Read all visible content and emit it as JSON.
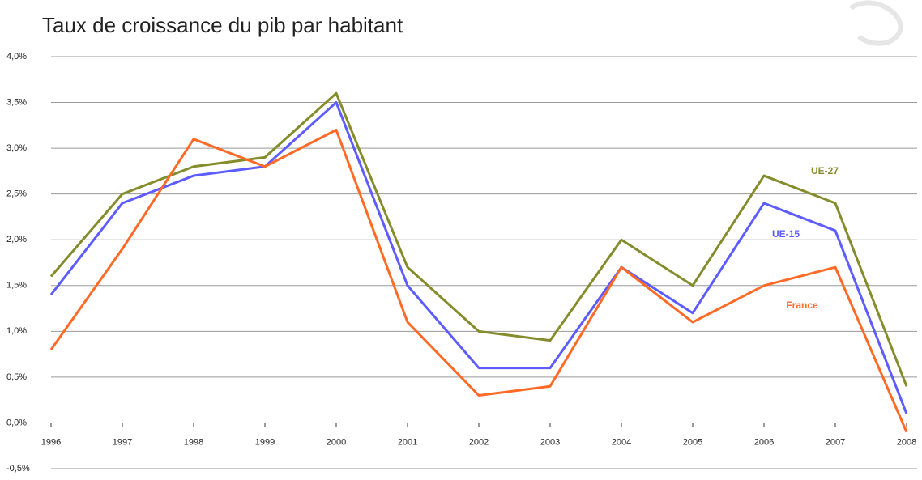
{
  "chart_data": {
    "type": "line",
    "title": "Taux de croissance du pib par habitant",
    "categories": [
      "1996",
      "1997",
      "1998",
      "1999",
      "2000",
      "2001",
      "2002",
      "2003",
      "2004",
      "2005",
      "2006",
      "2007",
      "2008"
    ],
    "series": [
      {
        "name": "UE-27",
        "color": "#858c2c",
        "values": [
          1.6,
          2.5,
          2.8,
          2.9,
          3.6,
          1.7,
          1.0,
          0.9,
          2.0,
          1.5,
          2.7,
          2.4,
          0.4
        ]
      },
      {
        "name": "UE-15",
        "color": "#5c5cff",
        "values": [
          1.4,
          2.4,
          2.7,
          2.8,
          3.5,
          1.5,
          0.6,
          0.6,
          1.7,
          1.2,
          2.4,
          2.1,
          0.1
        ]
      },
      {
        "name": "France",
        "color": "#ff6a26",
        "values": [
          0.8,
          1.9,
          3.1,
          2.8,
          3.2,
          1.1,
          0.3,
          0.4,
          1.7,
          1.1,
          1.5,
          1.7,
          -0.1
        ]
      }
    ],
    "ylim": [
      -0.5,
      4.0
    ],
    "yticks": [
      {
        "value": -0.5,
        "label": "-0,5%"
      },
      {
        "value": 0,
        "label": "0,0%"
      },
      {
        "value": 0.5,
        "label": "0,5%"
      },
      {
        "value": 1.0,
        "label": "1,0%"
      },
      {
        "value": 1.5,
        "label": "1,5%"
      },
      {
        "value": 2.0,
        "label": "2,0%"
      },
      {
        "value": 2.5,
        "label": "2,5%"
      },
      {
        "value": 3.0,
        "label": "3,0%"
      },
      {
        "value": 3.5,
        "label": "3,5%"
      },
      {
        "value": 4.0,
        "label": "4,0%"
      }
    ],
    "grid": true
  }
}
